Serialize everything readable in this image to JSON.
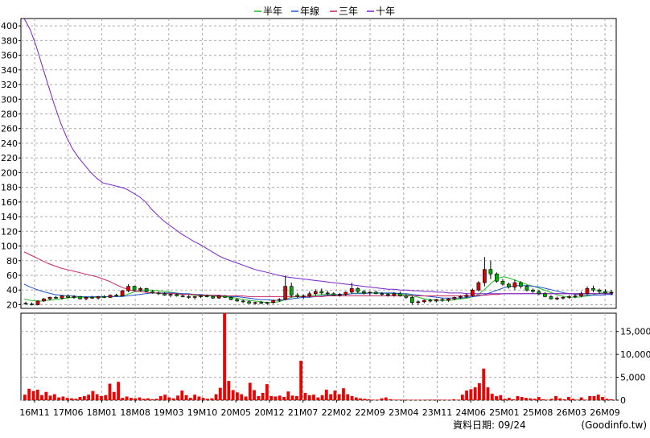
{
  "legend": [
    {
      "label": "半年",
      "color": "#22bb22"
    },
    {
      "label": "年線",
      "color": "#2255cc"
    },
    {
      "label": "三年",
      "color": "#cc2266"
    },
    {
      "label": "十年",
      "color": "#7722cc"
    }
  ],
  "footer": {
    "source_prefix": "資料日期:",
    "source_date": "09/24",
    "credit": "(Goodinfo.tw)"
  },
  "chart_data": [
    {
      "type": "line",
      "title": "",
      "x_labels": [
        "16M11",
        "17M06",
        "18M01",
        "18M08",
        "19M03",
        "19M10",
        "20M05",
        "20M12",
        "21M07",
        "22M02",
        "22M09",
        "23M04",
        "23M11",
        "24M06",
        "25M01",
        "25M08",
        "26M03",
        "26M09"
      ],
      "ylim": [
        15,
        410
      ],
      "yticks": [
        20,
        40,
        60,
        80,
        100,
        120,
        140,
        160,
        180,
        200,
        220,
        240,
        260,
        280,
        300,
        320,
        340,
        360,
        380,
        400
      ],
      "grid": true,
      "legend_position": "top-center",
      "candles": {
        "color_up": "#dd0000",
        "color_down": "#00aa00",
        "ohlc": [
          [
            22,
            24,
            20,
            21
          ],
          [
            21,
            23,
            19,
            20
          ],
          [
            20,
            26,
            19,
            25
          ],
          [
            25,
            29,
            24,
            28
          ],
          [
            28,
            31,
            26,
            30
          ],
          [
            30,
            32,
            28,
            29
          ],
          [
            29,
            33,
            27,
            32
          ],
          [
            32,
            34,
            29,
            30
          ],
          [
            30,
            33,
            28,
            31
          ],
          [
            31,
            32,
            27,
            28
          ],
          [
            28,
            31,
            26,
            30
          ],
          [
            30,
            32,
            28,
            29
          ],
          [
            29,
            32,
            27,
            31
          ],
          [
            31,
            33,
            29,
            30
          ],
          [
            30,
            34,
            29,
            33
          ],
          [
            33,
            35,
            31,
            32
          ],
          [
            32,
            40,
            31,
            39
          ],
          [
            39,
            48,
            37,
            45
          ],
          [
            45,
            46,
            39,
            40
          ],
          [
            40,
            44,
            38,
            42
          ],
          [
            42,
            43,
            37,
            38
          ],
          [
            38,
            40,
            35,
            36
          ],
          [
            36,
            38,
            33,
            35
          ],
          [
            35,
            37,
            32,
            33
          ],
          [
            33,
            35,
            30,
            34
          ],
          [
            34,
            35,
            31,
            32
          ],
          [
            32,
            34,
            30,
            31
          ],
          [
            31,
            33,
            28,
            30
          ],
          [
            30,
            32,
            27,
            31
          ],
          [
            31,
            33,
            29,
            32
          ],
          [
            32,
            34,
            30,
            31
          ],
          [
            31,
            32,
            28,
            29
          ],
          [
            29,
            33,
            28,
            32
          ],
          [
            32,
            33,
            29,
            30
          ],
          [
            30,
            31,
            26,
            27
          ],
          [
            27,
            29,
            24,
            25
          ],
          [
            25,
            27,
            22,
            24
          ],
          [
            24,
            26,
            21,
            22
          ],
          [
            22,
            24,
            20,
            23
          ],
          [
            23,
            25,
            21,
            22
          ],
          [
            22,
            24,
            20,
            23
          ],
          [
            23,
            27,
            21,
            26
          ],
          [
            26,
            29,
            24,
            27
          ],
          [
            27,
            60,
            26,
            45
          ],
          [
            45,
            50,
            30,
            33
          ],
          [
            33,
            36,
            29,
            31
          ],
          [
            31,
            34,
            28,
            32
          ],
          [
            32,
            38,
            30,
            35
          ],
          [
            35,
            41,
            32,
            38
          ],
          [
            38,
            42,
            34,
            36
          ],
          [
            36,
            39,
            33,
            35
          ],
          [
            35,
            37,
            32,
            33
          ],
          [
            33,
            36,
            31,
            34
          ],
          [
            34,
            38,
            32,
            37
          ],
          [
            37,
            50,
            35,
            42
          ],
          [
            42,
            44,
            36,
            38
          ],
          [
            38,
            40,
            34,
            36
          ],
          [
            36,
            38,
            33,
            37
          ],
          [
            37,
            39,
            34,
            35
          ],
          [
            35,
            37,
            32,
            34
          ],
          [
            34,
            36,
            31,
            33
          ],
          [
            33,
            37,
            31,
            35
          ],
          [
            35,
            38,
            31,
            32
          ],
          [
            32,
            34,
            28,
            30
          ],
          [
            30,
            33,
            20,
            23
          ],
          [
            23,
            26,
            20,
            24
          ],
          [
            24,
            27,
            22,
            26
          ],
          [
            26,
            28,
            23,
            25
          ],
          [
            25,
            28,
            23,
            27
          ],
          [
            27,
            29,
            24,
            26
          ],
          [
            26,
            29,
            24,
            28
          ],
          [
            28,
            31,
            26,
            30
          ],
          [
            30,
            33,
            28,
            31
          ],
          [
            31,
            35,
            29,
            33
          ],
          [
            33,
            42,
            31,
            40
          ],
          [
            40,
            52,
            38,
            50
          ],
          [
            50,
            85,
            45,
            68
          ],
          [
            68,
            80,
            55,
            62
          ],
          [
            62,
            64,
            50,
            52
          ],
          [
            52,
            55,
            46,
            48
          ],
          [
            48,
            50,
            42,
            44
          ],
          [
            44,
            54,
            40,
            50
          ],
          [
            50,
            52,
            42,
            45
          ],
          [
            45,
            47,
            38,
            40
          ],
          [
            40,
            42,
            36,
            38
          ],
          [
            38,
            40,
            33,
            35
          ],
          [
            35,
            37,
            30,
            31
          ],
          [
            31,
            33,
            27,
            28
          ],
          [
            28,
            31,
            26,
            29
          ],
          [
            29,
            32,
            27,
            30
          ],
          [
            30,
            33,
            28,
            31
          ],
          [
            31,
            34,
            29,
            32
          ],
          [
            32,
            38,
            30,
            35
          ],
          [
            35,
            45,
            33,
            42
          ],
          [
            42,
            46,
            37,
            40
          ],
          [
            40,
            42,
            35,
            38
          ],
          [
            38,
            41,
            35,
            36
          ],
          [
            36,
            40,
            33,
            37
          ]
        ]
      },
      "series": [
        {
          "name": "半年",
          "color": "#22bb22",
          "values": [
            28,
            26,
            25,
            25,
            26,
            27,
            28,
            29,
            30,
            30,
            30,
            30,
            30,
            30,
            31,
            31,
            32,
            34,
            37,
            39,
            40,
            40,
            39,
            38,
            37,
            36,
            35,
            34,
            33,
            32,
            32,
            32,
            31,
            31,
            30,
            29,
            27,
            26,
            25,
            24,
            23,
            23,
            24,
            27,
            30,
            31,
            31,
            32,
            33,
            34,
            34,
            34,
            34,
            34,
            35,
            36,
            36,
            36,
            36,
            36,
            35,
            35,
            34,
            34,
            32,
            30,
            28,
            27,
            26,
            26,
            26,
            27,
            28,
            29,
            31,
            35,
            42,
            50,
            56,
            58,
            56,
            53,
            50,
            47,
            45,
            42,
            39,
            36,
            33,
            31,
            30,
            30,
            31,
            32,
            34,
            36,
            37,
            37
          ]
        },
        {
          "name": "年線",
          "color": "#2255cc",
          "values": [
            48,
            44,
            41,
            38,
            36,
            34,
            33,
            32,
            32,
            31,
            31,
            31,
            31,
            31,
            31,
            31,
            31,
            32,
            33,
            34,
            35,
            36,
            36,
            36,
            36,
            36,
            35,
            35,
            34,
            34,
            33,
            33,
            32,
            32,
            31,
            31,
            30,
            29,
            28,
            27,
            27,
            26,
            26,
            27,
            28,
            29,
            30,
            30,
            31,
            32,
            33,
            33,
            34,
            34,
            35,
            35,
            35,
            36,
            36,
            36,
            36,
            36,
            35,
            35,
            34,
            33,
            32,
            31,
            30,
            29,
            29,
            29,
            29,
            30,
            31,
            32,
            34,
            37,
            40,
            43,
            45,
            46,
            46,
            46,
            45,
            44,
            42,
            40,
            38,
            36,
            35,
            34,
            33,
            33,
            33,
            33,
            34,
            34
          ]
        },
        {
          "name": "三年",
          "color": "#cc2266",
          "values": [
            92,
            88,
            84,
            80,
            76,
            73,
            70,
            68,
            66,
            64,
            62,
            60,
            58,
            55,
            52,
            48,
            44,
            41,
            39,
            38,
            37,
            36,
            36,
            35,
            35,
            35,
            34,
            34,
            34,
            33,
            33,
            33,
            33,
            32,
            32,
            32,
            32,
            31,
            31,
            31,
            31,
            31,
            31,
            31,
            31,
            31,
            31,
            31,
            31,
            31,
            32,
            32,
            32,
            32,
            32,
            32,
            32,
            32,
            32,
            32,
            32,
            32,
            32,
            32,
            32,
            32,
            32,
            32,
            32,
            32,
            32,
            32,
            32,
            32,
            32,
            33,
            33,
            34,
            34,
            35,
            35,
            35,
            35,
            35,
            35,
            35,
            35,
            35,
            35,
            35,
            35,
            35,
            35,
            35,
            35,
            35,
            35,
            35
          ]
        },
        {
          "name": "十年",
          "color": "#7722cc",
          "values": [
            415,
            395,
            372,
            345,
            318,
            292,
            268,
            248,
            232,
            220,
            210,
            200,
            192,
            186,
            184,
            182,
            180,
            177,
            172,
            167,
            160,
            150,
            142,
            134,
            128,
            122,
            116,
            111,
            106,
            102,
            97,
            92,
            87,
            83,
            80,
            77,
            74,
            71,
            68,
            66,
            64,
            62,
            60,
            58,
            57,
            56,
            55,
            54,
            53,
            52,
            51,
            50,
            49,
            48,
            47,
            46,
            45,
            44,
            43,
            42,
            41,
            41,
            40,
            40,
            39,
            39,
            38,
            38,
            37,
            37,
            36,
            36,
            36,
            35,
            35,
            35,
            35,
            35,
            35,
            35,
            35,
            35,
            35,
            35,
            35,
            35,
            35,
            35,
            35,
            35,
            35,
            35,
            35,
            35,
            35,
            35,
            35,
            35
          ]
        }
      ]
    },
    {
      "type": "bar",
      "title": "",
      "ylim": [
        0,
        19000
      ],
      "yticks": [
        0,
        5000,
        10000,
        15000
      ],
      "ytick_labels": [
        "0",
        "5,000",
        "10,000",
        "15,000"
      ],
      "grid": true,
      "bar_color": "#ee0000",
      "values": [
        1200,
        2500,
        2000,
        2300,
        1100,
        1800,
        1000,
        1300,
        600,
        800,
        500,
        400,
        300,
        700,
        900,
        1200,
        2000,
        1300,
        900,
        1100,
        3600,
        1800,
        4000,
        500,
        800,
        500,
        400,
        600,
        300,
        400,
        200,
        300,
        900,
        1200,
        600,
        400,
        1000,
        2100,
        1100,
        500,
        1200,
        800,
        500,
        300,
        400,
        1300,
        2700,
        19000,
        4200,
        2200,
        1700,
        1300,
        800,
        3800,
        2200,
        900,
        1600,
        3500,
        900,
        800,
        1000,
        700,
        1900,
        1000,
        900,
        8600,
        1600,
        1100,
        1200,
        600,
        1100,
        2300,
        1300,
        2100,
        1300,
        2600,
        1300,
        900,
        600,
        400,
        300,
        200,
        100,
        100,
        400,
        600,
        200,
        100,
        100,
        100,
        100,
        100,
        100,
        100,
        100,
        100,
        100,
        100,
        100,
        100,
        100,
        200,
        100,
        1200,
        2100,
        2400,
        2800,
        3700,
        6900,
        2800,
        1400,
        900,
        1100,
        300,
        500,
        200,
        900,
        700,
        500,
        400,
        300,
        700,
        200,
        100,
        300,
        900,
        400,
        200,
        700,
        300,
        100,
        600,
        100,
        900,
        900,
        1200,
        700,
        300,
        200
      ]
    }
  ]
}
